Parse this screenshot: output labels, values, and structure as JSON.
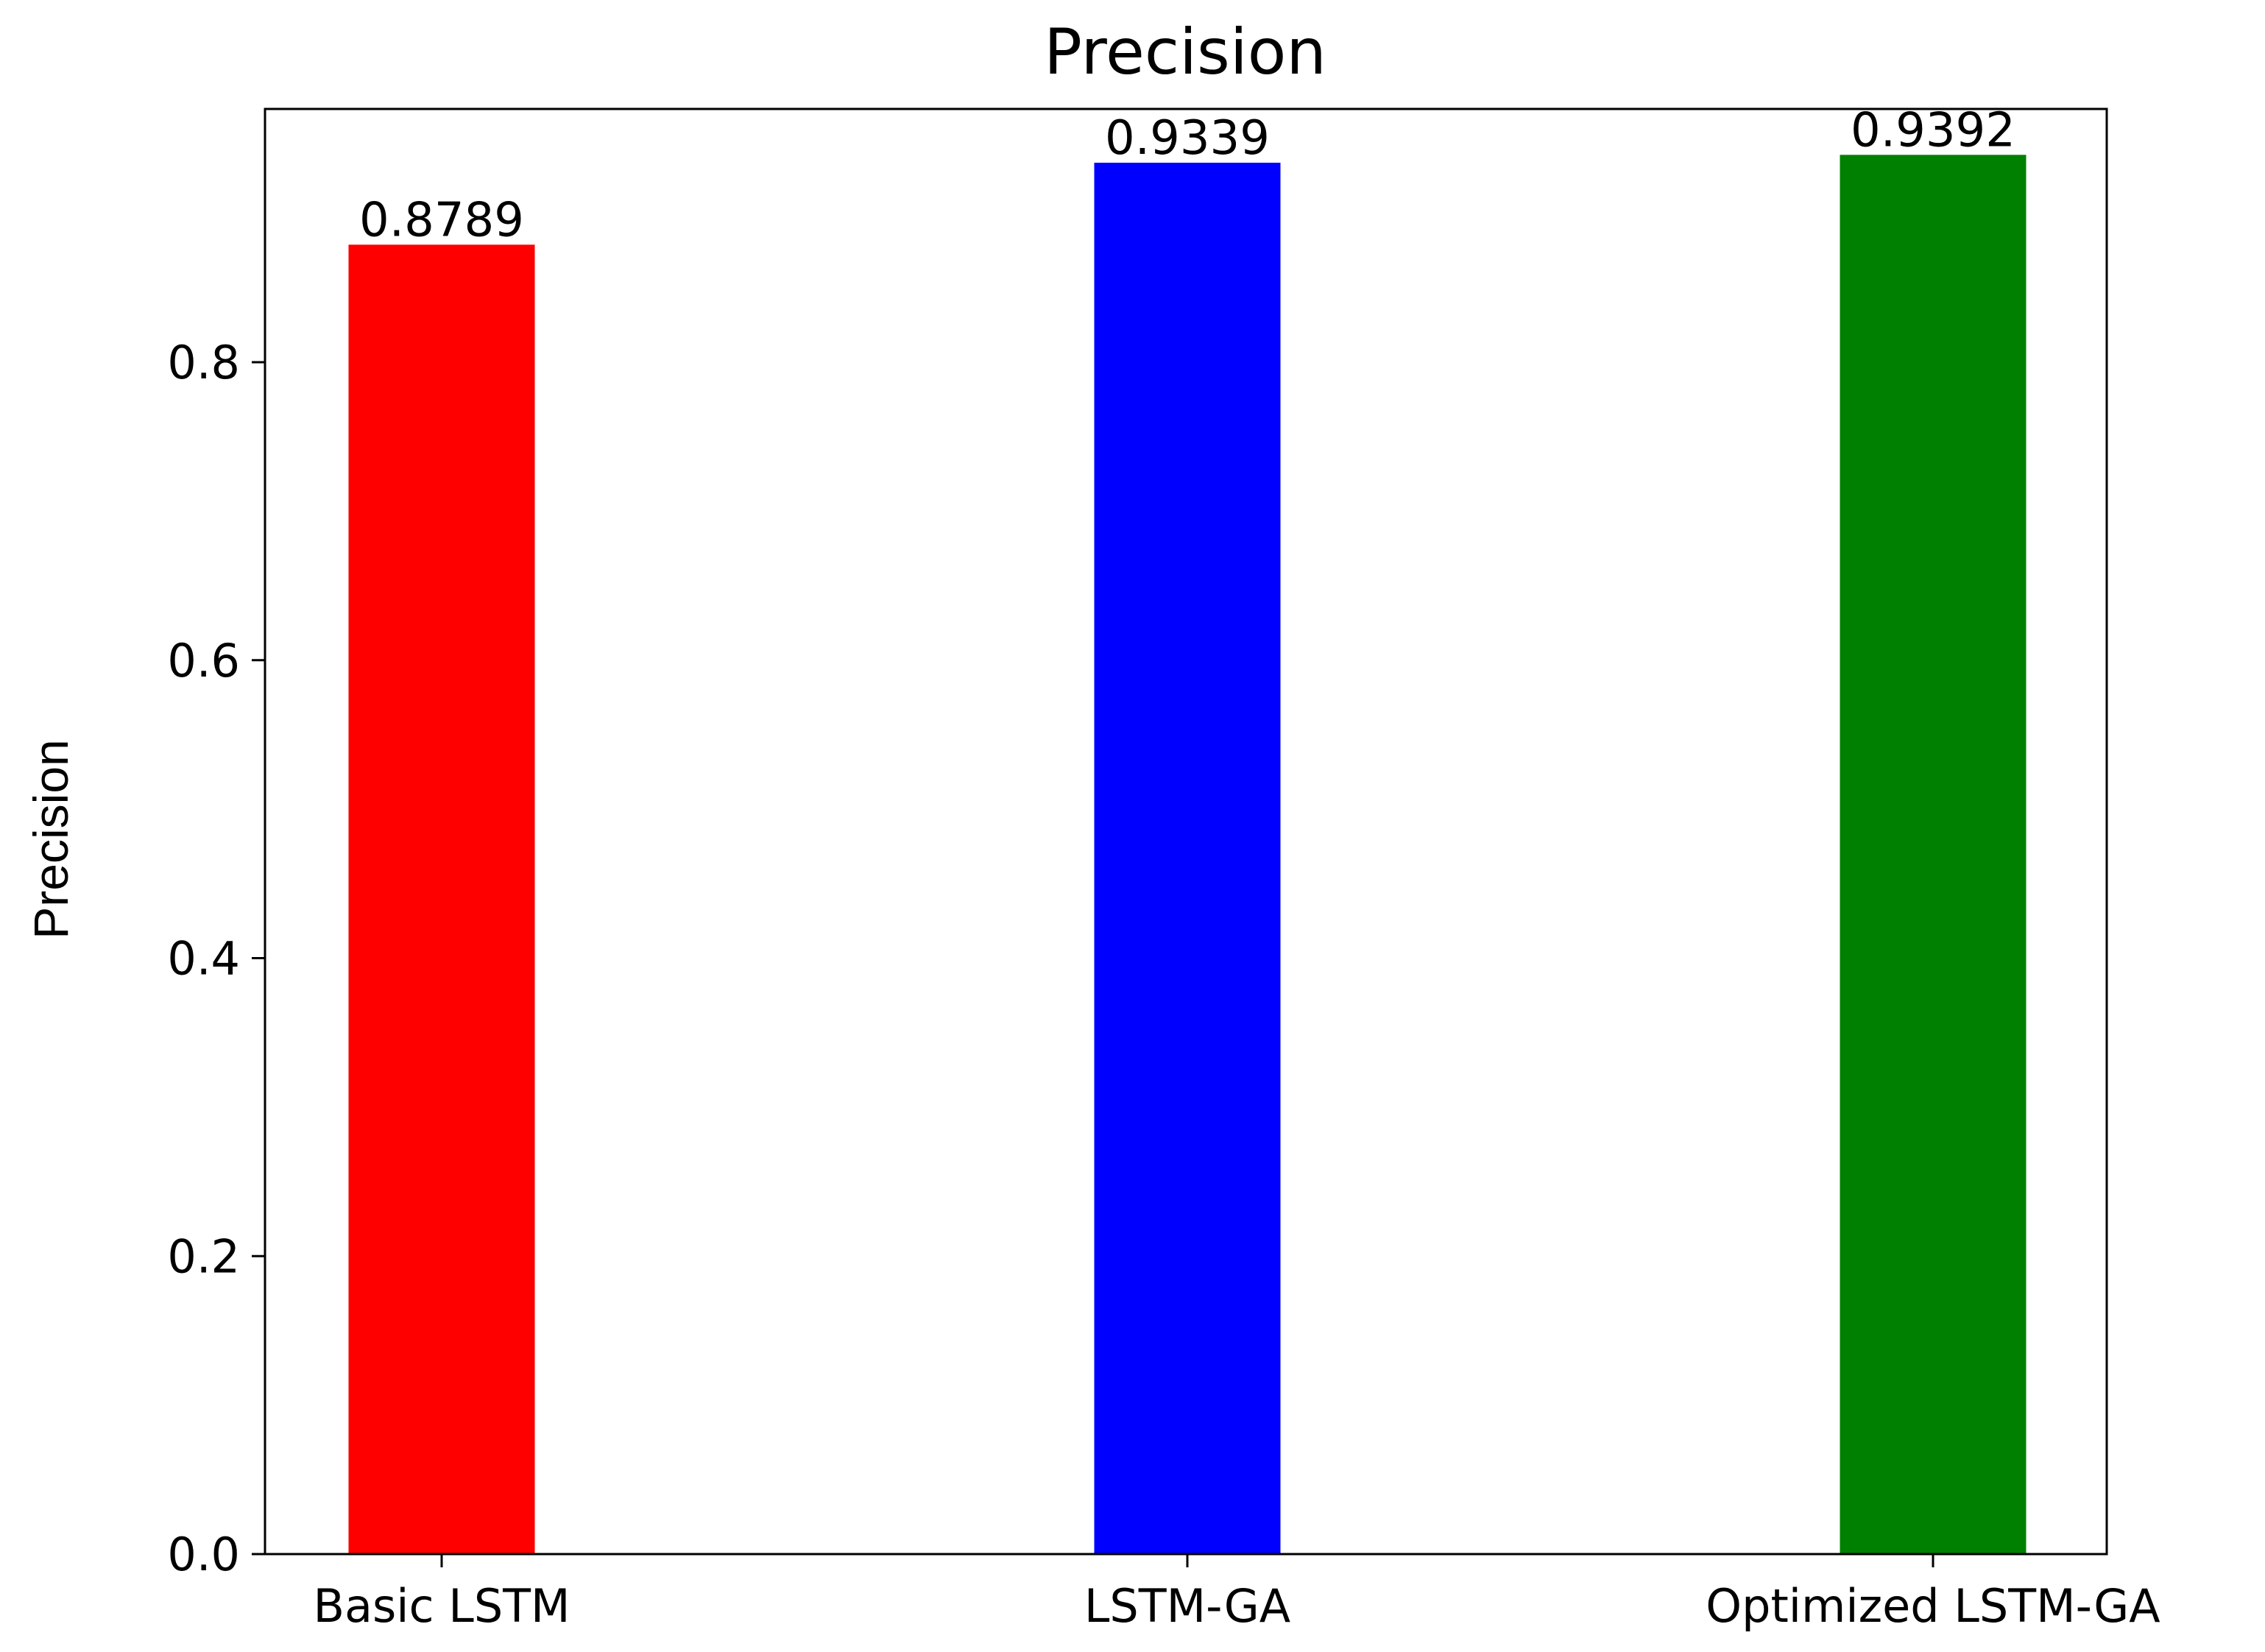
{
  "chart_data": {
    "type": "bar",
    "title": "Precision",
    "xlabel": "",
    "ylabel": "Precision",
    "categories": [
      "Basic LSTM",
      "LSTM-GA",
      "Optimized LSTM-GA"
    ],
    "values": [
      0.8789,
      0.9339,
      0.9392
    ],
    "data_labels": [
      "0.8789",
      "0.9339",
      "0.9392"
    ],
    "bar_colors": [
      "#ff0000",
      "#0000ff",
      "#008000"
    ],
    "yticks": [
      0.0,
      0.2,
      0.4,
      0.6,
      0.8
    ],
    "ytick_labels": [
      "0.0",
      "0.2",
      "0.4",
      "0.6",
      "0.8"
    ],
    "ylim": [
      0,
      0.97
    ],
    "grid": false,
    "legend": "none"
  }
}
